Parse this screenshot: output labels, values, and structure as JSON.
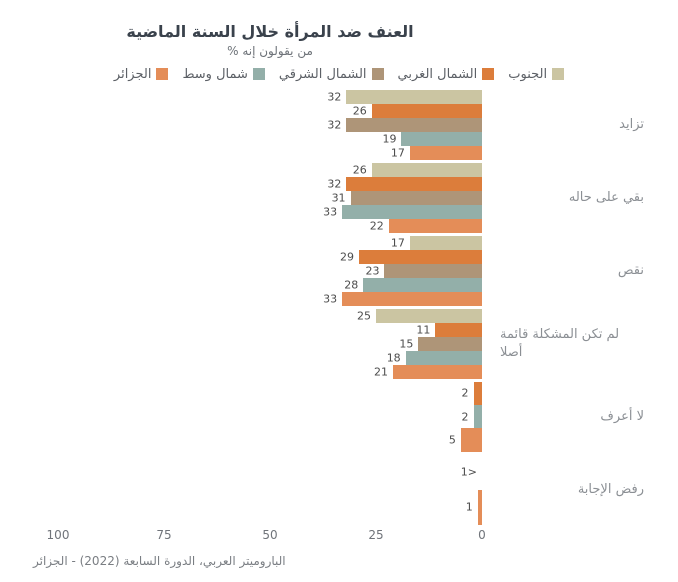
{
  "chart_data": {
    "type": "bar",
    "orientation": "horizontal",
    "rtl": true,
    "title": "العنف ضد المرأة خلال السنة الماضية",
    "subtitle": "% من يقولون إنه",
    "source": "الباروميتر العربي، الدورة السابعة (2022) - الجزائر",
    "legend_position": "top",
    "grid": false,
    "background_color": "#ffffff",
    "value_axis": {
      "min": 0,
      "max": 100,
      "ticks": [
        100,
        75,
        50,
        25,
        0
      ],
      "unit": "%"
    },
    "series": [
      {
        "name": "الجنوب",
        "color": "#cbc5a2"
      },
      {
        "name": "الشمال الغربي",
        "color": "#dc7d3b"
      },
      {
        "name": "الشمال الشرقي",
        "color": "#ae9578"
      },
      {
        "name": "شمال وسط",
        "color": "#93afa9"
      },
      {
        "name": "الجزائر",
        "color": "#e48d58"
      }
    ],
    "groups": [
      {
        "label": "تزايد",
        "bars": [
          {
            "series": "الجنوب",
            "value": 32,
            "display": "32"
          },
          {
            "series": "الشمال الغربي",
            "value": 26,
            "display": "26"
          },
          {
            "series": "الشمال الشرقي",
            "value": 32,
            "display": "32"
          },
          {
            "series": "شمال وسط",
            "value": 19,
            "display": "19"
          },
          {
            "series": "الجزائر",
            "value": 17,
            "display": "17"
          }
        ]
      },
      {
        "label": "بقي على حاله",
        "bars": [
          {
            "series": "الجنوب",
            "value": 26,
            "display": "26"
          },
          {
            "series": "الشمال الغربي",
            "value": 32,
            "display": "32"
          },
          {
            "series": "الشمال الشرقي",
            "value": 31,
            "display": "31"
          },
          {
            "series": "شمال وسط",
            "value": 33,
            "display": "33"
          },
          {
            "series": "الجزائر",
            "value": 22,
            "display": "22"
          }
        ]
      },
      {
        "label": "نقص",
        "bars": [
          {
            "series": "الجنوب",
            "value": 17,
            "display": "17"
          },
          {
            "series": "الشمال الغربي",
            "value": 29,
            "display": "29"
          },
          {
            "series": "الشمال الشرقي",
            "value": 23,
            "display": "23"
          },
          {
            "series": "شمال وسط",
            "value": 28,
            "display": "28"
          },
          {
            "series": "الجزائر",
            "value": 33,
            "display": "33"
          }
        ]
      },
      {
        "label": "لم تكن المشكلة قائمة أصلا",
        "bars": [
          {
            "series": "الجنوب",
            "value": 25,
            "display": "25"
          },
          {
            "series": "الشمال الغربي",
            "value": 11,
            "display": "11"
          },
          {
            "series": "الشمال الشرقي",
            "value": 15,
            "display": "15"
          },
          {
            "series": "شمال وسط",
            "value": 18,
            "display": "18"
          },
          {
            "series": "الجزائر",
            "value": 21,
            "display": "21"
          }
        ]
      },
      {
        "label": "لا أعرف",
        "bars": [
          {
            "series": "الشمال الغربي",
            "value": 2,
            "display": "2"
          },
          {
            "series": "شمال وسط",
            "value": 2,
            "display": "2"
          },
          {
            "series": "الجزائر",
            "value": 5,
            "display": "5"
          }
        ]
      },
      {
        "label": "رفض الإجابة",
        "bars": [
          {
            "series": "الشمال الغربي",
            "value": 0,
            "display": "<1"
          },
          {
            "series": "الجزائر",
            "value": 1,
            "display": "1"
          }
        ]
      }
    ]
  },
  "layout_colors": {
    "title": "#3a424c",
    "subtitle": "#6d7278",
    "value_label": "#4c4c4c",
    "category_label": "#8b8f94",
    "tick_label": "#70747a",
    "source": "#7a7e83"
  }
}
